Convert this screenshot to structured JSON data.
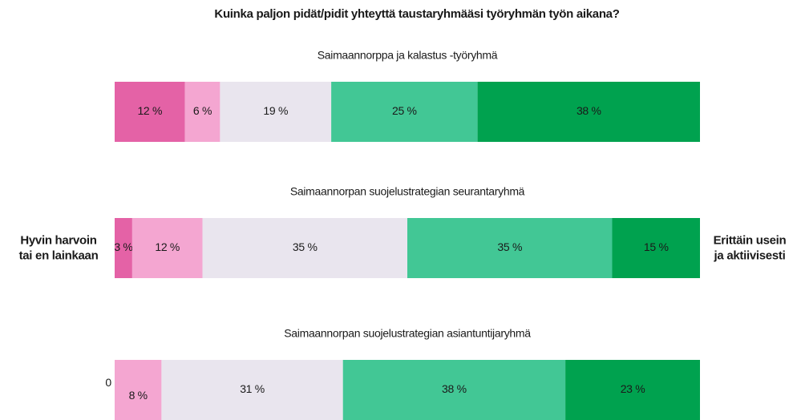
{
  "chart_data": {
    "type": "bar",
    "stacked": true,
    "orientation": "horizontal",
    "title": "Kuinka paljon pidät/pidit yhteyttä taustaryhmääsi työryhmän työn aikana?",
    "categories": [
      "Saimaannorppa ja kalastus -työryhmä",
      "Saimaannorpan suojelustrategian seurantaryhmä",
      "Saimaannorpan suojelustrategian asiantuntijaryhmä"
    ],
    "xlim": [
      0,
      100
    ],
    "series": [
      {
        "color": "#e462a6",
        "values": [
          12,
          3,
          0
        ],
        "value_labels": [
          "12 %",
          "3 %",
          "0 %"
        ]
      },
      {
        "color": "#f4a6d1",
        "values": [
          6,
          12,
          8
        ],
        "value_labels": [
          "6 %",
          "12 %",
          "8 %"
        ]
      },
      {
        "color": "#e9e5ee",
        "values": [
          19,
          35,
          31
        ],
        "value_labels": [
          "19 %",
          "35 %",
          "31 %"
        ]
      },
      {
        "color": "#42c795",
        "values": [
          25,
          35,
          38
        ],
        "value_labels": [
          "25 %",
          "35 %",
          "38 %"
        ]
      },
      {
        "color": "#00a24f",
        "values": [
          38,
          15,
          23
        ],
        "value_labels": [
          "38 %",
          "15 %",
          "23 %"
        ]
      }
    ],
    "annotations": [
      {
        "lines": [
          "Hyvin harvoin",
          "tai en lainkaan"
        ]
      },
      {
        "lines": [
          "Erittäin usein",
          "ja aktiivisesti"
        ]
      }
    ]
  }
}
